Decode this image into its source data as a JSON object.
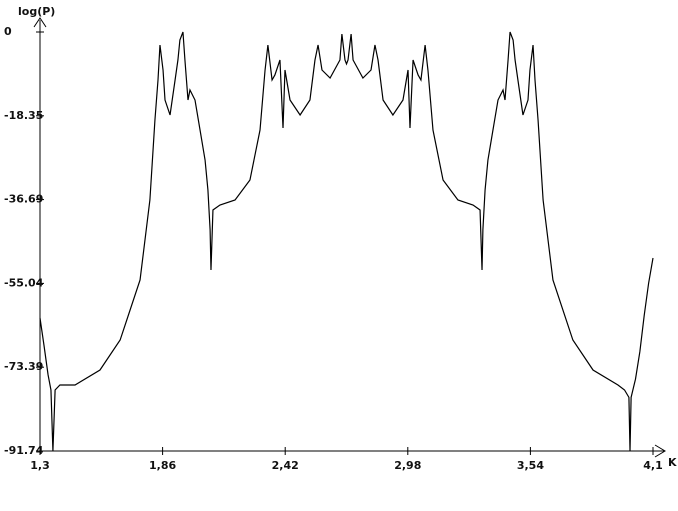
{
  "chart_data": {
    "type": "line",
    "y_label": "log(P)",
    "x_label": "K",
    "xlim": [
      1.3,
      4.1
    ],
    "xticks": [
      {
        "value": 1.3,
        "label": "1,3"
      },
      {
        "value": 1.86,
        "label": "1,86"
      },
      {
        "value": 2.42,
        "label": "2,42"
      },
      {
        "value": 2.98,
        "label": "2,98"
      },
      {
        "value": 3.54,
        "label": "3,54"
      },
      {
        "value": 4.1,
        "label": "4,1"
      }
    ],
    "ylim": [
      -91.74,
      0
    ],
    "yticks": [
      0,
      -18.35,
      -36.69,
      -55.04,
      -73.39,
      -91.74
    ],
    "grid": false,
    "x": [
      1.3,
      1.318,
      1.337,
      1.35,
      1.359,
      1.369,
      1.391,
      1.46,
      1.574,
      1.666,
      1.757,
      1.802,
      1.825,
      1.839,
      1.848,
      1.862,
      1.871,
      1.894,
      1.917,
      1.93,
      1.939,
      1.953,
      1.962,
      1.976,
      1.985,
      2.008,
      2.031,
      2.054,
      2.067,
      2.077,
      2.081,
      2.09,
      2.122,
      2.191,
      2.259,
      2.305,
      2.328,
      2.341,
      2.36,
      2.373,
      2.396,
      2.41,
      2.419,
      2.442,
      2.488,
      2.533,
      2.556,
      2.57,
      2.588,
      2.625,
      2.67,
      2.679,
      2.693,
      2.7,
      2.707,
      2.721,
      2.73,
      2.775,
      2.812,
      2.83,
      2.844,
      2.867,
      2.912,
      2.958,
      2.981,
      2.99,
      3.004,
      3.027,
      3.04,
      3.059,
      3.072,
      3.095,
      3.141,
      3.209,
      3.278,
      3.31,
      3.319,
      3.323,
      3.333,
      3.346,
      3.369,
      3.392,
      3.415,
      3.424,
      3.438,
      3.447,
      3.461,
      3.47,
      3.483,
      3.506,
      3.529,
      3.538,
      3.552,
      3.561,
      3.575,
      3.598,
      3.643,
      3.734,
      3.826,
      3.94,
      3.97,
      3.99,
      3.995,
      4.0,
      4.02,
      4.04,
      4.06,
      4.08,
      4.1
    ],
    "series": [
      {
        "color": "#000000",
        "values": [
          -62.62,
          -68.53,
          -75.1,
          -78.38,
          -91.74,
          -78.38,
          -77.29,
          -77.29,
          -74.01,
          -67.44,
          -54.3,
          -36.78,
          -19.27,
          -10.51,
          -2.85,
          -8.32,
          -14.89,
          -18.17,
          -10.51,
          -6.13,
          -1.75,
          0,
          -6.13,
          -14.89,
          -12.7,
          -14.89,
          -21.46,
          -28.03,
          -34.59,
          -43.35,
          -52.11,
          -38.97,
          -37.88,
          -36.78,
          -32.4,
          -21.46,
          -8.32,
          -2.85,
          -10.51,
          -9.41,
          -6.13,
          -21.02,
          -8.32,
          -14.89,
          -18.17,
          -14.89,
          -6.13,
          -2.85,
          -8.32,
          -10.07,
          -6.13,
          -0.44,
          -6.13,
          -7,
          -6.13,
          -0.44,
          -6.13,
          -10.07,
          -8.32,
          -2.85,
          -6.13,
          -14.89,
          -18.17,
          -14.89,
          -8.32,
          -21.02,
          -6.13,
          -9.41,
          -10.51,
          -2.85,
          -8.32,
          -21.46,
          -32.4,
          -36.78,
          -37.88,
          -38.97,
          -52.11,
          -43.35,
          -34.59,
          -28.03,
          -21.46,
          -14.89,
          -12.7,
          -14.89,
          -6.13,
          0,
          -1.75,
          -6.13,
          -10.51,
          -18.17,
          -14.89,
          -8.32,
          -2.85,
          -10.51,
          -19.27,
          -36.78,
          -54.3,
          -67.44,
          -74.01,
          -77.29,
          -78.38,
          -80,
          -91.74,
          -80,
          -76,
          -70,
          -62,
          -55,
          -49.48
        ]
      }
    ]
  }
}
